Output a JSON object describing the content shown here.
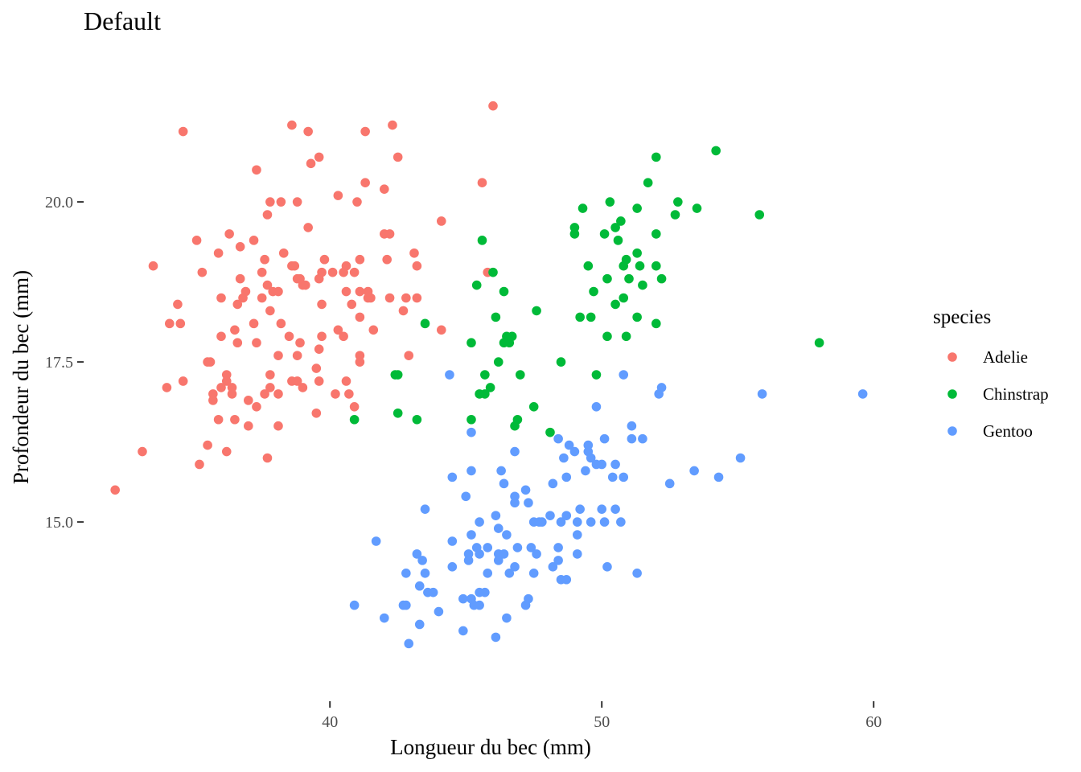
{
  "chart_data": {
    "type": "scatter",
    "title": "Default",
    "xlabel": "Longueur du bec (mm)",
    "ylabel": "Profondeur du bec (mm)",
    "xlim": [
      31.0,
      61.0
    ],
    "ylim": [
      12.2,
      22.3
    ],
    "xticks": [
      40,
      50,
      60
    ],
    "xtick_labels": [
      "40",
      "50",
      "60"
    ],
    "yticks": [
      15.0,
      17.5,
      20.0
    ],
    "ytick_labels": [
      "15.0",
      "17.5",
      "20.0"
    ],
    "grid": false,
    "legend": {
      "title": "species",
      "placement": "right",
      "entries": [
        "Adelie",
        "Chinstrap",
        "Gentoo"
      ]
    },
    "series": [
      {
        "name": "Adelie",
        "color": "#F8766D",
        "points": [
          [
            32.1,
            15.5
          ],
          [
            33.1,
            16.1
          ],
          [
            33.5,
            19.0
          ],
          [
            34.0,
            17.1
          ],
          [
            34.1,
            18.1
          ],
          [
            34.4,
            18.4
          ],
          [
            34.5,
            18.1
          ],
          [
            34.6,
            21.1
          ],
          [
            34.6,
            17.2
          ],
          [
            35.1,
            19.4
          ],
          [
            35.2,
            15.9
          ],
          [
            35.3,
            18.9
          ],
          [
            35.5,
            16.2
          ],
          [
            35.5,
            17.5
          ],
          [
            35.6,
            17.5
          ],
          [
            35.7,
            17.0
          ],
          [
            35.7,
            16.9
          ],
          [
            35.9,
            19.2
          ],
          [
            35.9,
            16.6
          ],
          [
            36.0,
            18.5
          ],
          [
            36.0,
            17.9
          ],
          [
            36.0,
            17.1
          ],
          [
            36.2,
            17.2
          ],
          [
            36.2,
            16.1
          ],
          [
            36.2,
            17.3
          ],
          [
            36.3,
            19.5
          ],
          [
            36.4,
            17.0
          ],
          [
            36.4,
            17.1
          ],
          [
            36.5,
            18.0
          ],
          [
            36.5,
            16.6
          ],
          [
            36.6,
            17.8
          ],
          [
            36.6,
            18.4
          ],
          [
            36.7,
            19.3
          ],
          [
            36.7,
            18.8
          ],
          [
            36.8,
            18.5
          ],
          [
            36.9,
            18.6
          ],
          [
            37.0,
            16.9
          ],
          [
            37.0,
            16.5
          ],
          [
            37.2,
            19.4
          ],
          [
            37.2,
            18.1
          ],
          [
            37.3,
            20.5
          ],
          [
            37.3,
            17.8
          ],
          [
            37.3,
            16.8
          ],
          [
            37.5,
            18.9
          ],
          [
            37.5,
            18.5
          ],
          [
            37.6,
            19.1
          ],
          [
            37.6,
            17.0
          ],
          [
            37.7,
            18.7
          ],
          [
            37.7,
            16.0
          ],
          [
            37.7,
            19.8
          ],
          [
            37.8,
            18.3
          ],
          [
            37.8,
            20.0
          ],
          [
            37.8,
            17.3
          ],
          [
            37.8,
            17.1
          ],
          [
            37.9,
            18.6
          ],
          [
            38.1,
            18.6
          ],
          [
            38.1,
            17.6
          ],
          [
            38.1,
            16.5
          ],
          [
            38.1,
            17.0
          ],
          [
            38.2,
            18.1
          ],
          [
            38.2,
            20.0
          ],
          [
            38.3,
            19.2
          ],
          [
            38.5,
            17.9
          ],
          [
            38.6,
            21.2
          ],
          [
            38.6,
            17.2
          ],
          [
            38.6,
            19.0
          ],
          [
            38.7,
            19.0
          ],
          [
            38.8,
            18.8
          ],
          [
            38.8,
            17.6
          ],
          [
            38.8,
            17.2
          ],
          [
            38.8,
            20.0
          ],
          [
            38.9,
            18.8
          ],
          [
            38.9,
            17.8
          ],
          [
            39.0,
            18.7
          ],
          [
            39.0,
            17.1
          ],
          [
            39.1,
            18.7
          ],
          [
            39.2,
            21.1
          ],
          [
            39.2,
            19.6
          ],
          [
            39.3,
            20.6
          ],
          [
            39.5,
            17.4
          ],
          [
            39.5,
            16.7
          ],
          [
            39.6,
            17.7
          ],
          [
            39.6,
            18.8
          ],
          [
            39.6,
            17.2
          ],
          [
            39.6,
            20.7
          ],
          [
            39.7,
            18.4
          ],
          [
            39.7,
            17.9
          ],
          [
            39.7,
            18.9
          ],
          [
            39.8,
            19.1
          ],
          [
            40.1,
            18.9
          ],
          [
            40.2,
            17.0
          ],
          [
            40.3,
            18.0
          ],
          [
            40.3,
            20.1
          ],
          [
            40.5,
            17.9
          ],
          [
            40.5,
            18.9
          ],
          [
            40.6,
            18.6
          ],
          [
            40.6,
            17.2
          ],
          [
            40.6,
            19.0
          ],
          [
            40.7,
            17.0
          ],
          [
            40.8,
            18.4
          ],
          [
            40.9,
            18.9
          ],
          [
            40.9,
            16.8
          ],
          [
            41.0,
            20.0
          ],
          [
            41.1,
            18.2
          ],
          [
            41.1,
            19.1
          ],
          [
            41.1,
            17.6
          ],
          [
            41.1,
            18.6
          ],
          [
            41.1,
            17.5
          ],
          [
            41.3,
            21.1
          ],
          [
            41.3,
            20.3
          ],
          [
            41.4,
            18.6
          ],
          [
            41.4,
            18.5
          ],
          [
            41.5,
            18.5
          ],
          [
            41.6,
            18.0
          ],
          [
            42.0,
            20.2
          ],
          [
            42.0,
            19.5
          ],
          [
            42.1,
            19.1
          ],
          [
            42.2,
            18.5
          ],
          [
            42.2,
            19.5
          ],
          [
            42.3,
            21.2
          ],
          [
            42.5,
            20.7
          ],
          [
            42.7,
            18.3
          ],
          [
            42.8,
            18.5
          ],
          [
            42.9,
            17.6
          ],
          [
            43.1,
            19.2
          ],
          [
            43.2,
            19.0
          ],
          [
            43.2,
            18.5
          ],
          [
            44.1,
            19.7
          ],
          [
            44.1,
            18.0
          ],
          [
            45.6,
            20.3
          ],
          [
            45.8,
            18.9
          ],
          [
            46.0,
            21.5
          ]
        ]
      },
      {
        "name": "Chinstrap",
        "color": "#00BA38",
        "points": [
          [
            40.9,
            16.6
          ],
          [
            42.4,
            17.3
          ],
          [
            42.5,
            16.7
          ],
          [
            42.5,
            17.3
          ],
          [
            43.2,
            16.6
          ],
          [
            43.5,
            18.1
          ],
          [
            45.2,
            17.8
          ],
          [
            45.2,
            16.6
          ],
          [
            45.4,
            18.7
          ],
          [
            45.5,
            17.0
          ],
          [
            45.6,
            19.4
          ],
          [
            45.7,
            17.3
          ],
          [
            45.7,
            17.0
          ],
          [
            45.9,
            17.1
          ],
          [
            46.0,
            18.9
          ],
          [
            46.1,
            18.2
          ],
          [
            46.2,
            17.5
          ],
          [
            46.4,
            17.8
          ],
          [
            46.4,
            18.6
          ],
          [
            46.5,
            17.9
          ],
          [
            46.6,
            17.8
          ],
          [
            46.7,
            17.9
          ],
          [
            46.8,
            16.5
          ],
          [
            46.9,
            16.6
          ],
          [
            47.0,
            17.3
          ],
          [
            47.5,
            16.8
          ],
          [
            47.6,
            18.3
          ],
          [
            48.1,
            16.4
          ],
          [
            48.5,
            17.5
          ],
          [
            49.0,
            19.5
          ],
          [
            49.0,
            19.6
          ],
          [
            49.2,
            18.2
          ],
          [
            49.3,
            19.9
          ],
          [
            49.5,
            19.0
          ],
          [
            49.6,
            18.2
          ],
          [
            49.7,
            18.6
          ],
          [
            49.8,
            17.3
          ],
          [
            50.1,
            19.5
          ],
          [
            50.2,
            18.8
          ],
          [
            50.2,
            17.9
          ],
          [
            50.3,
            20.0
          ],
          [
            50.5,
            18.4
          ],
          [
            50.5,
            19.6
          ],
          [
            50.6,
            19.4
          ],
          [
            50.7,
            19.7
          ],
          [
            50.8,
            18.5
          ],
          [
            50.8,
            19.0
          ],
          [
            50.9,
            19.1
          ],
          [
            50.9,
            17.9
          ],
          [
            51.0,
            18.8
          ],
          [
            51.3,
            18.2
          ],
          [
            51.3,
            19.9
          ],
          [
            51.3,
            19.2
          ],
          [
            51.4,
            19.0
          ],
          [
            51.5,
            18.7
          ],
          [
            51.7,
            20.3
          ],
          [
            52.0,
            19.5
          ],
          [
            52.0,
            18.1
          ],
          [
            52.0,
            19.0
          ],
          [
            52.0,
            20.7
          ],
          [
            52.2,
            18.8
          ],
          [
            52.7,
            19.8
          ],
          [
            52.8,
            20.0
          ],
          [
            53.5,
            19.9
          ],
          [
            54.2,
            20.8
          ],
          [
            55.8,
            19.8
          ],
          [
            58.0,
            17.8
          ]
        ]
      },
      {
        "name": "Gentoo",
        "color": "#619CFF",
        "points": [
          [
            40.9,
            13.7
          ],
          [
            41.7,
            14.7
          ],
          [
            42.0,
            13.5
          ],
          [
            42.7,
            13.7
          ],
          [
            42.8,
            14.2
          ],
          [
            42.8,
            13.7
          ],
          [
            42.9,
            13.1
          ],
          [
            43.2,
            14.5
          ],
          [
            43.3,
            14.0
          ],
          [
            43.3,
            13.4
          ],
          [
            43.4,
            14.4
          ],
          [
            43.5,
            14.2
          ],
          [
            43.5,
            15.2
          ],
          [
            43.6,
            13.9
          ],
          [
            43.8,
            13.9
          ],
          [
            44.0,
            13.6
          ],
          [
            44.4,
            17.3
          ],
          [
            44.5,
            15.7
          ],
          [
            44.5,
            14.7
          ],
          [
            44.5,
            14.3
          ],
          [
            44.9,
            13.3
          ],
          [
            44.9,
            13.8
          ],
          [
            45.0,
            15.4
          ],
          [
            45.1,
            14.5
          ],
          [
            45.1,
            14.4
          ],
          [
            45.2,
            15.8
          ],
          [
            45.2,
            14.8
          ],
          [
            45.2,
            16.4
          ],
          [
            45.2,
            13.8
          ],
          [
            45.3,
            13.7
          ],
          [
            45.4,
            14.6
          ],
          [
            45.5,
            13.7
          ],
          [
            45.5,
            15.0
          ],
          [
            45.5,
            13.9
          ],
          [
            45.5,
            14.5
          ],
          [
            45.7,
            13.9
          ],
          [
            45.8,
            14.6
          ],
          [
            45.8,
            14.2
          ],
          [
            46.1,
            13.2
          ],
          [
            46.1,
            15.1
          ],
          [
            46.2,
            14.5
          ],
          [
            46.2,
            14.4
          ],
          [
            46.2,
            14.9
          ],
          [
            46.3,
            15.8
          ],
          [
            46.4,
            14.5
          ],
          [
            46.4,
            15.6
          ],
          [
            46.5,
            14.8
          ],
          [
            46.5,
            13.5
          ],
          [
            46.6,
            14.2
          ],
          [
            46.8,
            15.3
          ],
          [
            46.8,
            15.4
          ],
          [
            46.8,
            14.3
          ],
          [
            46.8,
            16.1
          ],
          [
            46.9,
            14.6
          ],
          [
            47.2,
            13.7
          ],
          [
            47.2,
            15.5
          ],
          [
            47.3,
            13.8
          ],
          [
            47.3,
            15.3
          ],
          [
            47.4,
            14.6
          ],
          [
            47.5,
            14.2
          ],
          [
            47.5,
            15.0
          ],
          [
            47.6,
            14.5
          ],
          [
            47.7,
            15.0
          ],
          [
            47.8,
            15.0
          ],
          [
            48.1,
            15.1
          ],
          [
            48.2,
            14.3
          ],
          [
            48.2,
            15.6
          ],
          [
            48.4,
            14.6
          ],
          [
            48.4,
            16.3
          ],
          [
            48.4,
            14.4
          ],
          [
            48.5,
            14.1
          ],
          [
            48.5,
            15.0
          ],
          [
            48.6,
            16.0
          ],
          [
            48.7,
            15.7
          ],
          [
            48.7,
            14.1
          ],
          [
            48.7,
            15.1
          ],
          [
            48.8,
            16.2
          ],
          [
            49.0,
            16.1
          ],
          [
            49.1,
            14.5
          ],
          [
            49.1,
            14.8
          ],
          [
            49.1,
            15.0
          ],
          [
            49.2,
            15.2
          ],
          [
            49.4,
            15.8
          ],
          [
            49.5,
            16.2
          ],
          [
            49.5,
            16.1
          ],
          [
            49.6,
            16.0
          ],
          [
            49.6,
            15.0
          ],
          [
            49.8,
            15.9
          ],
          [
            49.8,
            16.8
          ],
          [
            50.0,
            15.2
          ],
          [
            50.0,
            15.9
          ],
          [
            50.1,
            15.0
          ],
          [
            50.1,
            16.3
          ],
          [
            50.2,
            14.3
          ],
          [
            50.4,
            15.7
          ],
          [
            50.5,
            15.2
          ],
          [
            50.5,
            15.9
          ],
          [
            50.7,
            15.0
          ],
          [
            50.8,
            15.7
          ],
          [
            50.8,
            17.3
          ],
          [
            51.1,
            16.3
          ],
          [
            51.1,
            16.5
          ],
          [
            51.3,
            14.2
          ],
          [
            51.5,
            16.3
          ],
          [
            52.1,
            17.0
          ],
          [
            52.2,
            17.1
          ],
          [
            52.5,
            15.6
          ],
          [
            53.4,
            15.8
          ],
          [
            54.3,
            15.7
          ],
          [
            55.1,
            16.0
          ],
          [
            55.9,
            17.0
          ],
          [
            59.6,
            17.0
          ]
        ]
      }
    ]
  }
}
